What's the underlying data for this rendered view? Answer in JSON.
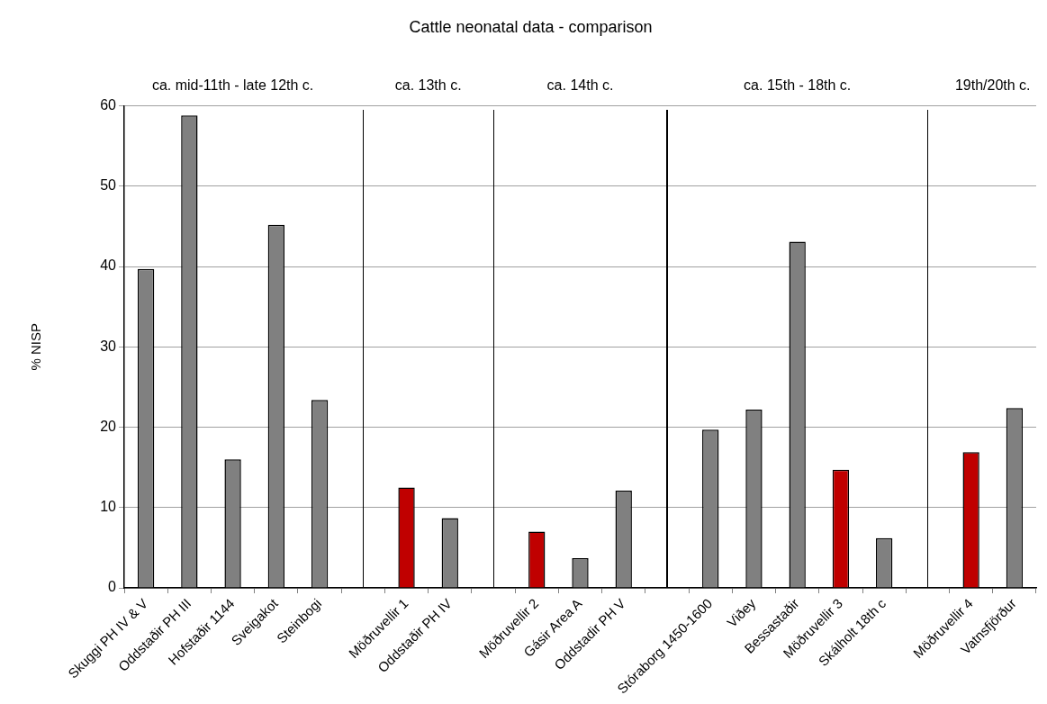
{
  "chart_data": {
    "type": "bar",
    "title": "Cattle neonatal data - comparison",
    "ylabel": "% NISP",
    "categories": [
      "Skuggi PH IV & V",
      "Oddstaðir PH III",
      "Hofstaðir 1144",
      "Sveigakot",
      "Steinbogi",
      null,
      "Möðruvellir 1",
      "Oddstaðir PH IV",
      null,
      "Möðruvellir 2",
      "Gásir Area A",
      "Oddstadir PH V",
      null,
      "Stóraborg 1450-1600",
      "Viðey",
      "Bessastaðir",
      "Möðruvellir 3",
      "Skálholt 18th c",
      null,
      "Möðruvellir 4",
      "Vatnsfjörður"
    ],
    "values": [
      39.7,
      58.8,
      16.0,
      45.2,
      23.4,
      null,
      12.5,
      8.7,
      null,
      7.0,
      3.7,
      12.1,
      null,
      19.7,
      22.2,
      43.1,
      14.7,
      6.2,
      null,
      16.9,
      22.4
    ],
    "colors": [
      "#808080",
      "#808080",
      "#808080",
      "#808080",
      "#808080",
      "#808080",
      "#c00000",
      "#808080",
      "#808080",
      "#c00000",
      "#808080",
      "#808080",
      "#808080",
      "#808080",
      "#808080",
      "#808080",
      "#c00000",
      "#808080",
      "#808080",
      "#c00000",
      "#808080"
    ],
    "annotations": [
      "ca. mid-11th - late 12th c.",
      "ca. 13th c.",
      "ca. 14th c.",
      "ca. 15th - 18th c.",
      "19th/20th c."
    ],
    "ylim": [
      0,
      60
    ],
    "yticks": [
      0,
      10,
      20,
      30,
      40,
      50,
      60
    ],
    "grid": "y",
    "legend": false
  }
}
